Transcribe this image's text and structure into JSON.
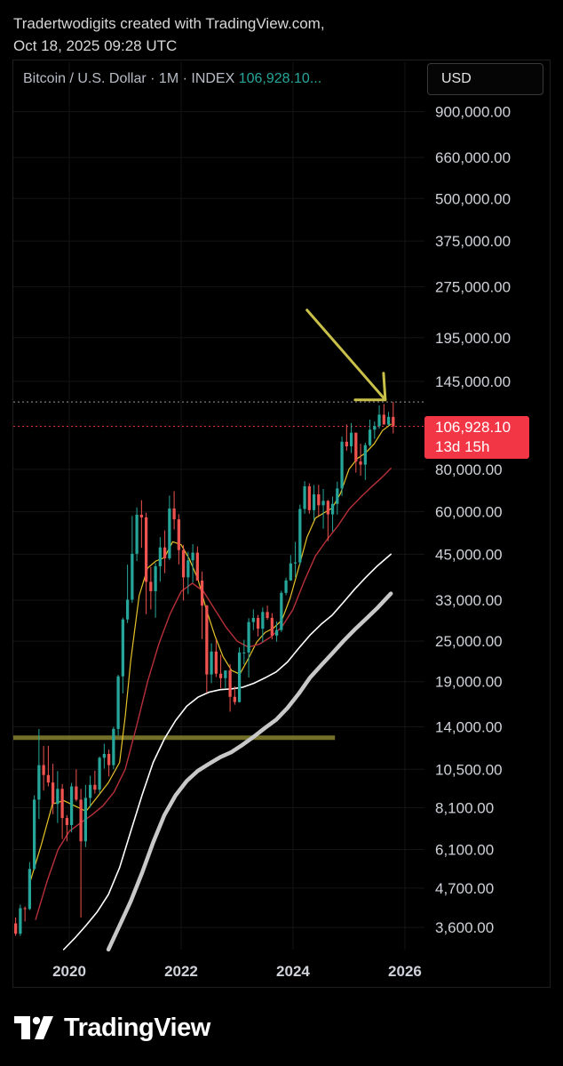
{
  "caption": {
    "line1": "Tradertwodigits created with TradingView.com,",
    "line2": "Oct 18, 2025 09:28 UTC"
  },
  "legend": {
    "symbol": "Bitcoin / U.S. Dollar · 1M · INDEX",
    "price": "106,928.10..."
  },
  "currency_button": "USD",
  "price_tag": {
    "price": "106,928.10",
    "countdown": "13d 15h"
  },
  "brand": {
    "name": "TradingView",
    "logo": "tradingview-logo-icon"
  },
  "colors": {
    "background": "#000000",
    "up": "#26a69a",
    "down": "#ef5350",
    "ma_fast": "#e6c229",
    "ma_mid": "#b7303a",
    "ma_slow": "#ffffff",
    "ma_slowest": "#c8c8c8",
    "annotation": "#c9c04a",
    "price_tag": "#f23645"
  },
  "chart_data": {
    "type": "candlestick",
    "title": "Bitcoin / U.S. Dollar · 1M · INDEX",
    "xlabel": "",
    "ylabel": "",
    "y_scale": "log",
    "ylim": [
      3100,
      1050000
    ],
    "xlim": [
      2019.0,
      2026.35
    ],
    "y_ticks": [
      {
        "value": 900000,
        "label": "900,000.00"
      },
      {
        "value": 660000,
        "label": "660,000.00"
      },
      {
        "value": 500000,
        "label": "500,000.00"
      },
      {
        "value": 375000,
        "label": "375,000.00"
      },
      {
        "value": 275000,
        "label": "275,000.00"
      },
      {
        "value": 195000,
        "label": "195,000.00"
      },
      {
        "value": 145000,
        "label": "145,000.00"
      },
      {
        "value": 80000,
        "label": "80,000.00"
      },
      {
        "value": 60000,
        "label": "60,000.00"
      },
      {
        "value": 45000,
        "label": "45,000.00"
      },
      {
        "value": 33000,
        "label": "33,000.00"
      },
      {
        "value": 25000,
        "label": "25,000.00"
      },
      {
        "value": 19000,
        "label": "19,000.00"
      },
      {
        "value": 14000,
        "label": "14,000.00"
      },
      {
        "value": 10500,
        "label": "10,500.00"
      },
      {
        "value": 8100,
        "label": "8,100.00"
      },
      {
        "value": 6100,
        "label": "6,100.00"
      },
      {
        "value": 4700,
        "label": "4,700.00"
      },
      {
        "value": 3600,
        "label": "3,600.00"
      }
    ],
    "x_ticks": [
      {
        "value": 2020,
        "label": "2020"
      },
      {
        "value": 2022,
        "label": "2022"
      },
      {
        "value": 2024,
        "label": "2024"
      },
      {
        "value": 2026,
        "label": "2026"
      }
    ],
    "start": 2019.0,
    "step": 0.08333,
    "candles": [
      [
        3700,
        3850,
        3400,
        3450
      ],
      [
        3450,
        4200,
        3400,
        4100
      ],
      [
        4100,
        4150,
        3750,
        4080
      ],
      [
        4080,
        5600,
        4050,
        5350
      ],
      [
        5350,
        8800,
        5300,
        8550
      ],
      [
        8550,
        13800,
        7500,
        10800
      ],
      [
        10800,
        12300,
        9100,
        10100
      ],
      [
        10100,
        12300,
        9350,
        9600
      ],
      [
        9600,
        10900,
        7750,
        8300
      ],
      [
        8300,
        10370,
        7300,
        9200
      ],
      [
        9200,
        9500,
        6550,
        7550
      ],
      [
        7550,
        7700,
        6450,
        7200
      ],
      [
        7200,
        9580,
        6850,
        9350
      ],
      [
        9350,
        10500,
        8450,
        8550
      ],
      [
        8550,
        9200,
        3850,
        6450
      ],
      [
        6450,
        9450,
        6200,
        8650
      ],
      [
        8650,
        10050,
        8100,
        9450
      ],
      [
        9450,
        10400,
        8900,
        9150
      ],
      [
        9150,
        11450,
        8950,
        11350
      ],
      [
        11350,
        12480,
        10550,
        11650
      ],
      [
        11650,
        12000,
        10000,
        10800
      ],
      [
        10800,
        14000,
        10500,
        13800
      ],
      [
        13800,
        19900,
        13200,
        19700
      ],
      [
        19700,
        29300,
        17550,
        28950
      ],
      [
        28950,
        41950,
        28250,
        33100
      ],
      [
        33100,
        58350,
        32400,
        45150
      ],
      [
        45150,
        61800,
        43000,
        58800
      ],
      [
        58800,
        64900,
        47000,
        57750
      ],
      [
        57750,
        59600,
        30000,
        37350
      ],
      [
        37350,
        41300,
        31000,
        35050
      ],
      [
        35050,
        42400,
        29300,
        41500
      ],
      [
        41500,
        50500,
        37400,
        47150
      ],
      [
        47150,
        52900,
        39600,
        43800
      ],
      [
        43800,
        66950,
        43300,
        61350
      ],
      [
        61350,
        69000,
        53250,
        57000
      ],
      [
        57000,
        59050,
        42000,
        46300
      ],
      [
        46300,
        47950,
        32900,
        38500
      ],
      [
        38500,
        45800,
        34350,
        43200
      ],
      [
        43200,
        48200,
        37150,
        45500
      ],
      [
        45500,
        47450,
        37700,
        37650
      ],
      [
        37650,
        40050,
        25350,
        31800
      ],
      [
        31800,
        31950,
        17600,
        19950
      ],
      [
        19950,
        24650,
        18800,
        23300
      ],
      [
        23300,
        25200,
        19600,
        20050
      ],
      [
        20050,
        22800,
        18150,
        19450
      ],
      [
        19450,
        20450,
        18200,
        20500
      ],
      [
        20500,
        21400,
        15500,
        17150
      ],
      [
        17150,
        18400,
        16250,
        16550
      ],
      [
        16550,
        23950,
        16500,
        23150
      ],
      [
        23150,
        25250,
        21350,
        23150
      ],
      [
        23150,
        29200,
        19550,
        28450
      ],
      [
        28450,
        31000,
        26950,
        29250
      ],
      [
        29250,
        29850,
        25800,
        27200
      ],
      [
        27200,
        31400,
        24800,
        30450
      ],
      [
        30450,
        31800,
        28900,
        29250
      ],
      [
        29250,
        30200,
        25300,
        25950
      ],
      [
        25950,
        28550,
        24900,
        26950
      ],
      [
        26950,
        35150,
        26600,
        34650
      ],
      [
        34650,
        38400,
        34100,
        37700
      ],
      [
        37700,
        44750,
        37600,
        42300
      ],
      [
        42300,
        48950,
        38550,
        42600
      ],
      [
        42600,
        63000,
        41850,
        61150
      ],
      [
        61150,
        73800,
        59200,
        71300
      ],
      [
        71300,
        72800,
        59200,
        60650
      ],
      [
        60650,
        71950,
        56550,
        67500
      ],
      [
        67500,
        72000,
        58450,
        62700
      ],
      [
        62700,
        70000,
        53500,
        64600
      ],
      [
        64600,
        65000,
        49200,
        58950
      ],
      [
        58950,
        66500,
        52550,
        63300
      ],
      [
        63300,
        73600,
        58850,
        70250
      ],
      [
        70250,
        99850,
        66800,
        96400
      ],
      [
        96400,
        108350,
        90700,
        93450
      ],
      [
        93450,
        109350,
        89250,
        102450
      ],
      [
        102450,
        102550,
        78200,
        84350
      ],
      [
        84350,
        95100,
        76600,
        82550
      ],
      [
        82550,
        95750,
        74450,
        94200
      ],
      [
        94200,
        111950,
        93350,
        104600
      ],
      [
        104600,
        110500,
        98250,
        107150
      ],
      [
        107150,
        123250,
        105250,
        115750
      ],
      [
        115750,
        124450,
        108750,
        108250
      ],
      [
        108250,
        117950,
        107300,
        114050
      ],
      [
        114050,
        126200,
        102000,
        106928
      ]
    ],
    "series": [
      {
        "name": "",
        "style": "ma-fast",
        "points": [
          [
            2019.3,
            4900
          ],
          [
            2019.5,
            6300
          ],
          [
            2019.7,
            8300
          ],
          [
            2019.9,
            8500
          ],
          [
            2020.1,
            8200
          ],
          [
            2020.3,
            7900
          ],
          [
            2020.5,
            8700
          ],
          [
            2020.7,
            9600
          ],
          [
            2020.9,
            11000
          ],
          [
            2021.0,
            15000
          ],
          [
            2021.1,
            22000
          ],
          [
            2021.25,
            34000
          ],
          [
            2021.4,
            41000
          ],
          [
            2021.55,
            43000
          ],
          [
            2021.7,
            44000
          ],
          [
            2021.85,
            49000
          ],
          [
            2022.0,
            48000
          ],
          [
            2022.15,
            43500
          ],
          [
            2022.3,
            38000
          ],
          [
            2022.45,
            31000
          ],
          [
            2022.6,
            26000
          ],
          [
            2022.75,
            22500
          ],
          [
            2022.9,
            20500
          ],
          [
            2023.05,
            20000
          ],
          [
            2023.2,
            22200
          ],
          [
            2023.35,
            24800
          ],
          [
            2023.5,
            26500
          ],
          [
            2023.65,
            27300
          ],
          [
            2023.8,
            28800
          ],
          [
            2023.95,
            33500
          ],
          [
            2024.1,
            41000
          ],
          [
            2024.25,
            50500
          ],
          [
            2024.4,
            57500
          ],
          [
            2024.55,
            59500
          ],
          [
            2024.7,
            61500
          ],
          [
            2024.85,
            68000
          ],
          [
            2025.0,
            80000
          ],
          [
            2025.15,
            86000
          ],
          [
            2025.3,
            89500
          ],
          [
            2025.45,
            95000
          ],
          [
            2025.6,
            104000
          ],
          [
            2025.75,
            108500
          ]
        ]
      },
      {
        "name": "",
        "style": "ma-mid",
        "points": [
          [
            2019.4,
            3800
          ],
          [
            2019.6,
            4900
          ],
          [
            2019.8,
            6100
          ],
          [
            2020.0,
            6900
          ],
          [
            2020.2,
            7300
          ],
          [
            2020.4,
            7700
          ],
          [
            2020.6,
            8200
          ],
          [
            2020.8,
            9000
          ],
          [
            2021.0,
            10500
          ],
          [
            2021.2,
            14000
          ],
          [
            2021.4,
            19000
          ],
          [
            2021.6,
            24500
          ],
          [
            2021.8,
            30000
          ],
          [
            2022.0,
            35000
          ],
          [
            2022.2,
            37000
          ],
          [
            2022.4,
            35000
          ],
          [
            2022.6,
            31000
          ],
          [
            2022.8,
            27500
          ],
          [
            2023.0,
            25000
          ],
          [
            2023.2,
            24000
          ],
          [
            2023.4,
            24500
          ],
          [
            2023.6,
            25700
          ],
          [
            2023.8,
            27500
          ],
          [
            2024.0,
            31000
          ],
          [
            2024.2,
            37500
          ],
          [
            2024.4,
            44500
          ],
          [
            2024.6,
            49500
          ],
          [
            2024.8,
            54500
          ],
          [
            2025.0,
            61000
          ],
          [
            2025.2,
            66000
          ],
          [
            2025.4,
            71000
          ],
          [
            2025.6,
            76000
          ],
          [
            2025.75,
            80500
          ]
        ]
      },
      {
        "name": "",
        "style": "ma-slow",
        "points": [
          [
            2019.9,
            3100
          ],
          [
            2020.1,
            3350
          ],
          [
            2020.3,
            3650
          ],
          [
            2020.5,
            4000
          ],
          [
            2020.7,
            4500
          ],
          [
            2020.9,
            5400
          ],
          [
            2021.1,
            6900
          ],
          [
            2021.3,
            8800
          ],
          [
            2021.5,
            11000
          ],
          [
            2021.7,
            12900
          ],
          [
            2021.9,
            14600
          ],
          [
            2022.1,
            16100
          ],
          [
            2022.3,
            17100
          ],
          [
            2022.5,
            17700
          ],
          [
            2022.7,
            18000
          ],
          [
            2022.9,
            18100
          ],
          [
            2023.1,
            18300
          ],
          [
            2023.3,
            18800
          ],
          [
            2023.5,
            19500
          ],
          [
            2023.7,
            20300
          ],
          [
            2023.9,
            21700
          ],
          [
            2024.1,
            23800
          ],
          [
            2024.3,
            26000
          ],
          [
            2024.5,
            28000
          ],
          [
            2024.7,
            29800
          ],
          [
            2024.9,
            32500
          ],
          [
            2025.1,
            35500
          ],
          [
            2025.3,
            38500
          ],
          [
            2025.5,
            41500
          ],
          [
            2025.75,
            45000
          ]
        ]
      },
      {
        "name": "",
        "style": "ma-slowest",
        "points": [
          [
            2020.7,
            3100
          ],
          [
            2020.9,
            3650
          ],
          [
            2021.1,
            4300
          ],
          [
            2021.3,
            5200
          ],
          [
            2021.5,
            6400
          ],
          [
            2021.7,
            7700
          ],
          [
            2021.9,
            8800
          ],
          [
            2022.1,
            9700
          ],
          [
            2022.3,
            10400
          ],
          [
            2022.5,
            10900
          ],
          [
            2022.7,
            11400
          ],
          [
            2022.9,
            11800
          ],
          [
            2023.1,
            12400
          ],
          [
            2023.3,
            13100
          ],
          [
            2023.5,
            13900
          ],
          [
            2023.7,
            14700
          ],
          [
            2023.9,
            15900
          ],
          [
            2024.1,
            17500
          ],
          [
            2024.3,
            19500
          ],
          [
            2024.5,
            21200
          ],
          [
            2024.7,
            23000
          ],
          [
            2024.9,
            25000
          ],
          [
            2025.1,
            27000
          ],
          [
            2025.3,
            29000
          ],
          [
            2025.5,
            31200
          ],
          [
            2025.75,
            34500
          ]
        ]
      }
    ],
    "annotations": {
      "horizontal_band": {
        "y": 13000,
        "x_from": 2019.0,
        "x_to": 2024.75
      },
      "arrow": {
        "from": [
          2024.25,
          235000
        ],
        "to": [
          2025.65,
          128000
        ]
      },
      "current_price_line": 106928,
      "dotted_high_line": 126200
    }
  }
}
